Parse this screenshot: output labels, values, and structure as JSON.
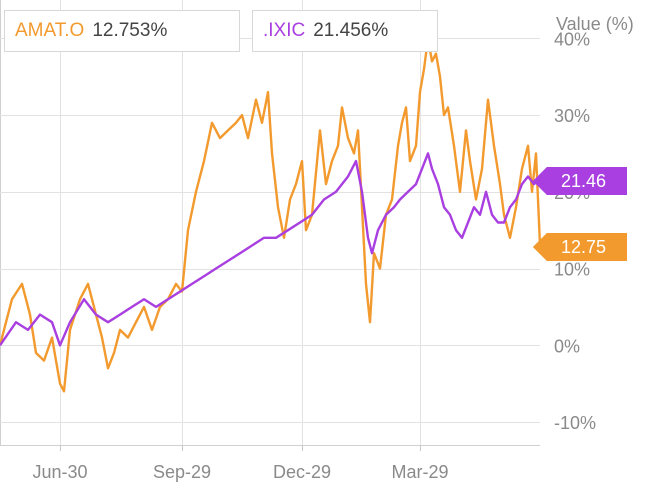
{
  "legend": [
    {
      "name": "AMAT.O",
      "value": "12.753%",
      "color": "#f39a2e"
    },
    {
      "name": ".IXIC",
      "value": "21.456%",
      "color": "#a93fe0"
    }
  ],
  "tags": [
    {
      "label": "21.46",
      "value": 21.46,
      "color": "#a93fe0"
    },
    {
      "label": "12.75",
      "value": 12.75,
      "color": "#f39a2e"
    }
  ],
  "chart_data": {
    "type": "line",
    "ylabel": "Value (%)",
    "ylim": [
      -13,
      45
    ],
    "y_ticks": [
      {
        "label": "40%",
        "value": 40
      },
      {
        "label": "30%",
        "value": 30
      },
      {
        "label": "20%",
        "value": 20
      },
      {
        "label": "10%",
        "value": 10
      },
      {
        "label": "0%",
        "value": 0
      },
      {
        "label": "-10%",
        "value": -10
      }
    ],
    "x_range": [
      0,
      270
    ],
    "x_ticks": [
      {
        "label": "Jun-30",
        "x": 30
      },
      {
        "label": "Sep-29",
        "x": 91
      },
      {
        "label": "Dec-29",
        "x": 151
      },
      {
        "label": "Mar-29",
        "x": 210
      }
    ],
    "grid": true,
    "series": [
      {
        "name": "AMAT.O",
        "color": "#f39a2e",
        "points": [
          [
            0,
            0
          ],
          [
            6,
            6
          ],
          [
            11,
            8
          ],
          [
            15,
            4
          ],
          [
            18,
            -1
          ],
          [
            22,
            -2
          ],
          [
            26,
            1
          ],
          [
            30,
            -5
          ],
          [
            32,
            -6
          ],
          [
            35,
            2
          ],
          [
            40,
            6
          ],
          [
            44,
            8
          ],
          [
            48,
            4
          ],
          [
            51,
            1
          ],
          [
            54,
            -3
          ],
          [
            57,
            -1
          ],
          [
            60,
            2
          ],
          [
            64,
            1
          ],
          [
            68,
            3
          ],
          [
            72,
            5
          ],
          [
            76,
            2
          ],
          [
            80,
            5
          ],
          [
            84,
            6
          ],
          [
            88,
            8
          ],
          [
            91,
            7
          ],
          [
            94,
            15
          ],
          [
            98,
            20
          ],
          [
            102,
            24
          ],
          [
            106,
            29
          ],
          [
            110,
            27
          ],
          [
            114,
            28
          ],
          [
            118,
            29
          ],
          [
            121,
            30
          ],
          [
            124,
            27
          ],
          [
            128,
            32
          ],
          [
            131,
            29
          ],
          [
            134,
            33
          ],
          [
            136,
            25
          ],
          [
            139,
            18
          ],
          [
            142,
            14
          ],
          [
            145,
            19
          ],
          [
            148,
            21
          ],
          [
            151,
            24
          ],
          [
            153,
            15
          ],
          [
            156,
            17
          ],
          [
            160,
            28
          ],
          [
            163,
            21
          ],
          [
            166,
            24
          ],
          [
            169,
            26
          ],
          [
            171,
            31
          ],
          [
            174,
            27
          ],
          [
            177,
            25
          ],
          [
            179,
            28
          ],
          [
            181,
            18
          ],
          [
            183,
            8
          ],
          [
            185,
            3
          ],
          [
            187,
            12
          ],
          [
            190,
            10
          ],
          [
            193,
            17
          ],
          [
            196,
            19
          ],
          [
            199,
            26
          ],
          [
            201,
            29
          ],
          [
            203,
            31
          ],
          [
            205,
            24
          ],
          [
            208,
            26
          ],
          [
            210,
            33
          ],
          [
            212,
            36
          ],
          [
            214,
            40
          ],
          [
            216,
            37
          ],
          [
            218,
            38
          ],
          [
            220,
            35
          ],
          [
            222,
            30
          ],
          [
            224,
            31
          ],
          [
            227,
            26
          ],
          [
            230,
            20
          ],
          [
            233,
            28
          ],
          [
            235,
            24
          ],
          [
            238,
            19
          ],
          [
            241,
            23
          ],
          [
            244,
            32
          ],
          [
            247,
            26
          ],
          [
            250,
            21
          ],
          [
            252,
            17
          ],
          [
            255,
            14
          ],
          [
            258,
            18
          ],
          [
            261,
            23
          ],
          [
            264,
            26
          ],
          [
            266,
            20
          ],
          [
            268,
            25
          ],
          [
            270,
            13
          ]
        ]
      },
      {
        "name": ".IXIC",
        "color": "#a93fe0",
        "points": [
          [
            0,
            0
          ],
          [
            8,
            3
          ],
          [
            14,
            2
          ],
          [
            20,
            4
          ],
          [
            26,
            3
          ],
          [
            30,
            0
          ],
          [
            35,
            3
          ],
          [
            42,
            6
          ],
          [
            48,
            4
          ],
          [
            54,
            3
          ],
          [
            60,
            4
          ],
          [
            66,
            5
          ],
          [
            72,
            6
          ],
          [
            78,
            5
          ],
          [
            84,
            6
          ],
          [
            90,
            7
          ],
          [
            96,
            8
          ],
          [
            102,
            9
          ],
          [
            108,
            10
          ],
          [
            114,
            11
          ],
          [
            120,
            12
          ],
          [
            126,
            13
          ],
          [
            132,
            14
          ],
          [
            138,
            14
          ],
          [
            144,
            15
          ],
          [
            150,
            16
          ],
          [
            156,
            17
          ],
          [
            162,
            19
          ],
          [
            168,
            20
          ],
          [
            174,
            22
          ],
          [
            178,
            24
          ],
          [
            181,
            20
          ],
          [
            184,
            14
          ],
          [
            186,
            12
          ],
          [
            189,
            15
          ],
          [
            193,
            17
          ],
          [
            197,
            18
          ],
          [
            200,
            19
          ],
          [
            204,
            20
          ],
          [
            208,
            21
          ],
          [
            211,
            23
          ],
          [
            214,
            25
          ],
          [
            216,
            23
          ],
          [
            219,
            21
          ],
          [
            222,
            18
          ],
          [
            225,
            17
          ],
          [
            228,
            15
          ],
          [
            231,
            14
          ],
          [
            234,
            16
          ],
          [
            237,
            18
          ],
          [
            240,
            17
          ],
          [
            243,
            20
          ],
          [
            246,
            17
          ],
          [
            249,
            16
          ],
          [
            252,
            16
          ],
          [
            255,
            18
          ],
          [
            258,
            19
          ],
          [
            261,
            21
          ],
          [
            264,
            22
          ],
          [
            267,
            21
          ],
          [
            269,
            21.46
          ]
        ]
      }
    ]
  }
}
